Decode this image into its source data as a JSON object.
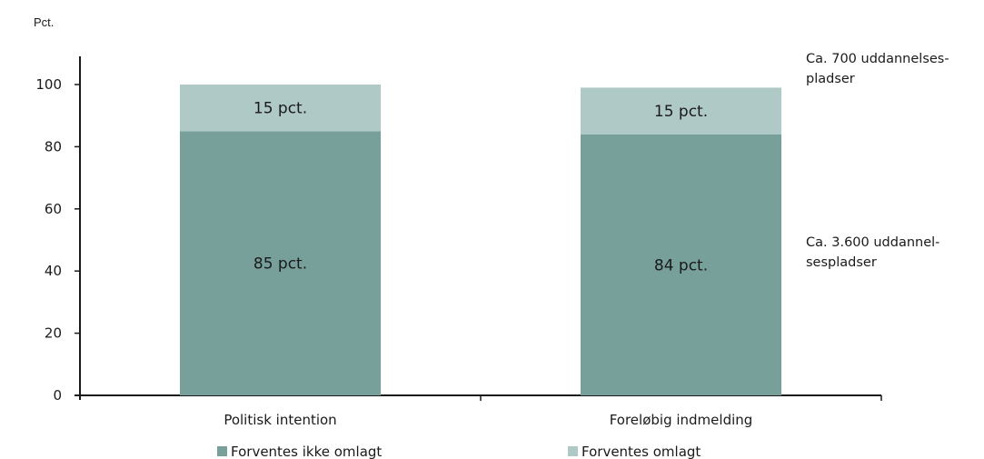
{
  "chart_data": {
    "type": "bar",
    "stacked": true,
    "ylabel": "Pct.",
    "ylim": [
      0,
      100
    ],
    "yticks": [
      0,
      20,
      40,
      60,
      80,
      100
    ],
    "categories": [
      "Politisk intention",
      "Foreløbig indmelding"
    ],
    "series": [
      {
        "name": "Forventes ikke omlagt",
        "values": [
          85,
          84
        ],
        "labels": [
          "85 pct.",
          "84 pct."
        ],
        "color": "#78a09b"
      },
      {
        "name": "Forventes omlagt",
        "values": [
          15,
          15
        ],
        "labels": [
          "15 pct.",
          "15 pct."
        ],
        "color": "#afc9c6"
      }
    ],
    "annotations": [
      {
        "lines": [
          "Ca. 700 uddannelses-",
          "pladser"
        ],
        "near_value": 107
      },
      {
        "lines": [
          "Ca. 3.600 uddannel-",
          "sespladser"
        ],
        "near_value": 48
      }
    ],
    "legend_position": "bottom",
    "grid": false
  }
}
